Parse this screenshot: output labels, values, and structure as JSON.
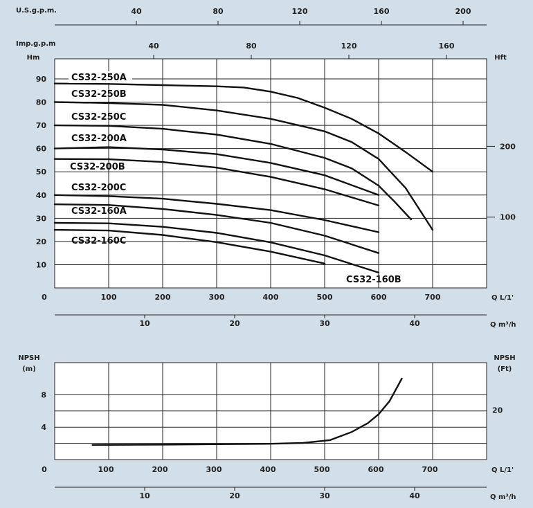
{
  "chart_data": [
    {
      "type": "line",
      "title": "",
      "xlabel": "Q L/1'",
      "ylabel": "Hm",
      "ylabel_right": "Hft",
      "xlim": [
        0,
        800
      ],
      "ylim": [
        0,
        95
      ],
      "x_ticks": [
        "0",
        "100",
        "200",
        "300",
        "400",
        "500",
        "600",
        "700"
      ],
      "y_ticks": [
        "10",
        "20",
        "30",
        "40",
        "50",
        "60",
        "70",
        "80",
        "90"
      ],
      "y_right_ticks": [
        "100",
        "200"
      ],
      "secondary_axes": [
        {
          "label": "U.S.g.p.m.",
          "ticks": [
            "40",
            "80",
            "120",
            "160",
            "200"
          ]
        },
        {
          "label": "Imp.g.p.m",
          "ticks": [
            "40",
            "80",
            "120",
            "160"
          ]
        },
        {
          "label": "Q m³/h",
          "ticks": [
            "10",
            "20",
            "30",
            "40"
          ]
        }
      ],
      "grid": true,
      "series": [
        {
          "name": "CS32-250A",
          "x": [
            0,
            100,
            200,
            300,
            350,
            400,
            450,
            500,
            550,
            600,
            650,
            700
          ],
          "y": [
            88,
            87.8,
            87.3,
            86.8,
            86.3,
            84.5,
            81.8,
            77.6,
            72.8,
            66.5,
            58.5,
            50
          ]
        },
        {
          "name": "CS32-250B",
          "x": [
            0,
            100,
            200,
            300,
            400,
            500,
            550,
            600,
            650,
            700
          ],
          "y": [
            80,
            79.6,
            78.8,
            76.4,
            72.8,
            67.4,
            62.8,
            55.5,
            43,
            25
          ]
        },
        {
          "name": "CS32-250C",
          "x": [
            0,
            100,
            200,
            300,
            400,
            500,
            550,
            600,
            630,
            660
          ],
          "y": [
            70,
            69.8,
            68.5,
            66,
            62,
            56,
            51.5,
            44,
            37,
            29.5
          ]
        },
        {
          "name": "CS32-200A",
          "x": [
            0,
            100,
            200,
            300,
            400,
            500,
            600
          ],
          "y": [
            60,
            60.6,
            59.6,
            57.6,
            53.8,
            48.5,
            40
          ]
        },
        {
          "name": "CS32-200B",
          "x": [
            0,
            100,
            200,
            300,
            400,
            500,
            600
          ],
          "y": [
            55.5,
            55.4,
            54.2,
            51.8,
            47.8,
            42.5,
            35.5
          ]
        },
        {
          "name": "CS32-200C",
          "x": [
            0,
            100,
            200,
            300,
            400,
            500,
            600
          ],
          "y": [
            40,
            39.5,
            38.4,
            36.2,
            33.5,
            29.2,
            24
          ]
        },
        {
          "name": "CS32-160A",
          "x": [
            0,
            100,
            200,
            300,
            400,
            500,
            600
          ],
          "y": [
            36,
            35.7,
            34,
            31.4,
            28,
            22.5,
            15
          ]
        },
        {
          "name": "CS32-160B",
          "x": [
            0,
            100,
            200,
            300,
            400,
            500,
            600
          ],
          "y": [
            28,
            27.8,
            26.3,
            23.7,
            19.6,
            14,
            6.6
          ]
        },
        {
          "name": "CS32-160C",
          "x": [
            0,
            100,
            200,
            300,
            400,
            500
          ],
          "y": [
            25,
            24.7,
            22.8,
            19.7,
            15.6,
            10.5
          ]
        }
      ]
    },
    {
      "type": "line",
      "title": "",
      "xlabel": "Q L/1'",
      "ylabel": "NPSH (m)",
      "ylabel_right": "NPSH (Ft)",
      "xlim": [
        0,
        800
      ],
      "ylim": [
        0,
        10
      ],
      "x_ticks": [
        "0",
        "100",
        "200",
        "300",
        "400",
        "500",
        "600",
        "700"
      ],
      "y_ticks": [
        "4",
        "8"
      ],
      "y_right_ticks": [
        "20"
      ],
      "secondary_axes": [
        {
          "label": "Q m³/h",
          "ticks": [
            "10",
            "20",
            "30",
            "40"
          ]
        }
      ],
      "grid": true,
      "series": [
        {
          "name": "",
          "x": [
            70,
            200,
            300,
            400,
            460,
            510,
            550,
            580,
            600,
            620,
            643
          ],
          "y": [
            1.8,
            1.85,
            1.9,
            1.95,
            2.05,
            2.4,
            3.4,
            4.5,
            5.6,
            7.2,
            10
          ]
        }
      ]
    }
  ]
}
